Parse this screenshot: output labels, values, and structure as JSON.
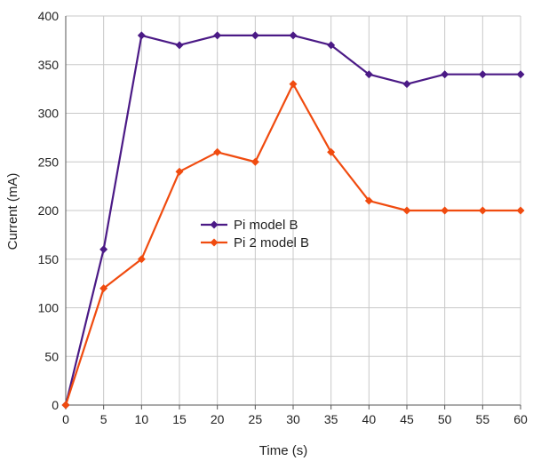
{
  "chart_data": {
    "type": "line",
    "title": "",
    "xlabel": "Time (s)",
    "ylabel": "Current (mA)",
    "x": [
      0,
      5,
      10,
      15,
      20,
      25,
      30,
      35,
      40,
      45,
      50,
      55,
      60
    ],
    "xlim": [
      0,
      60
    ],
    "ylim": [
      0,
      400
    ],
    "xticks": [
      0,
      5,
      10,
      15,
      20,
      25,
      30,
      35,
      40,
      45,
      50,
      55,
      60
    ],
    "yticks": [
      0,
      50,
      100,
      150,
      200,
      250,
      300,
      350,
      400
    ],
    "grid": true,
    "legend_position": "center",
    "series": [
      {
        "name": "Pi model B",
        "color": "#4b1a86",
        "marker": "diamond",
        "values": [
          0,
          160,
          380,
          370,
          380,
          380,
          380,
          370,
          340,
          330,
          340,
          340,
          340
        ]
      },
      {
        "name": "Pi 2 model B",
        "color": "#f04b0f",
        "marker": "diamond",
        "values": [
          0,
          120,
          150,
          240,
          260,
          250,
          330,
          260,
          210,
          200,
          200,
          200,
          200
        ]
      }
    ]
  }
}
